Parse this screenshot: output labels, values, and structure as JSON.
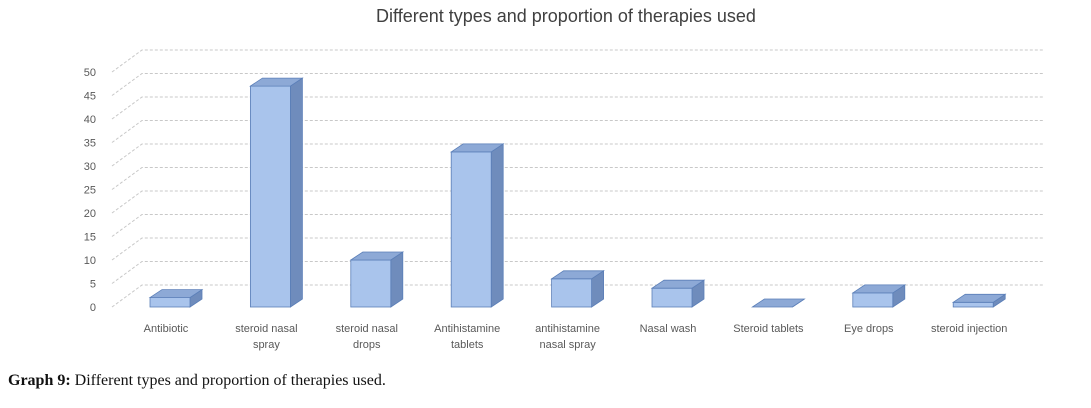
{
  "chart_data": {
    "type": "bar",
    "style": "3d-column",
    "title": "Different types and proportion of therapies used",
    "xlabel": "",
    "ylabel": "",
    "ylim": [
      0,
      50
    ],
    "yticks": [
      0,
      5,
      10,
      15,
      20,
      25,
      30,
      35,
      40,
      45,
      50
    ],
    "grid": true,
    "legend": "none",
    "categories": [
      [
        "Antibiotic"
      ],
      [
        "steroid nasal",
        "spray"
      ],
      [
        "steroid nasal",
        "drops"
      ],
      [
        "Antihistamine",
        "tablets"
      ],
      [
        "antihistamine",
        "nasal spray"
      ],
      [
        "Nasal wash"
      ],
      [
        "Steroid tablets"
      ],
      [
        "Eye drops"
      ],
      [
        "steroid injection"
      ]
    ],
    "values": [
      2,
      47,
      10,
      33,
      6,
      4,
      0,
      3,
      1
    ],
    "colors": {
      "bar_front": "#a9c4ec",
      "bar_side": "#6f8cbc",
      "bar_top": "#8da9d6",
      "bar_edge": "#5b7fb8"
    }
  },
  "caption": {
    "label": "Graph 9:",
    "text": " Different types and proportion of therapies used."
  }
}
